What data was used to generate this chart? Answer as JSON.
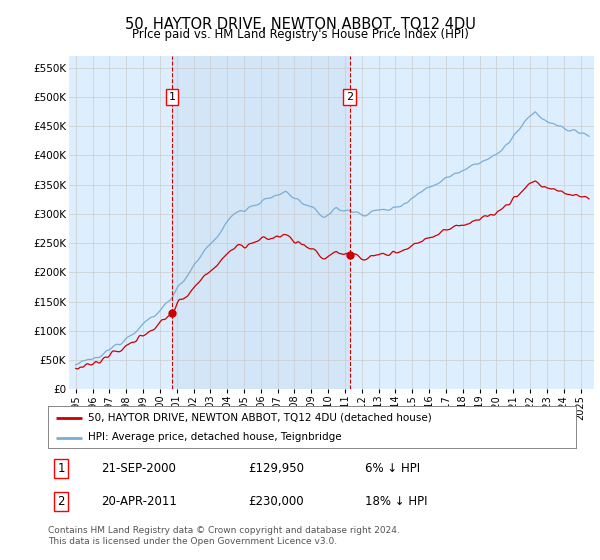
{
  "title": "50, HAYTOR DRIVE, NEWTON ABBOT, TQ12 4DU",
  "subtitle": "Price paid vs. HM Land Registry's House Price Index (HPI)",
  "sale1_date": "21-SEP-2000",
  "sale1_price": 129950,
  "sale1_note": "6% ↓ HPI",
  "sale2_date": "20-APR-2011",
  "sale2_price": 230000,
  "sale2_note": "18% ↓ HPI",
  "legend_red": "50, HAYTOR DRIVE, NEWTON ABBOT, TQ12 4DU (detached house)",
  "legend_blue": "HPI: Average price, detached house, Teignbridge",
  "footer": "Contains HM Land Registry data © Crown copyright and database right 2024.\nThis data is licensed under the Open Government Licence v3.0.",
  "red_color": "#cc0000",
  "blue_color": "#7aaed4",
  "vline_color": "#cc0000",
  "bg_color": "#ddeeff",
  "highlight_color": "#c8dff0",
  "grid_color": "#cccccc",
  "ylim": [
    0,
    570000
  ],
  "yticks": [
    0,
    50000,
    100000,
    150000,
    200000,
    250000,
    300000,
    350000,
    400000,
    450000,
    500000,
    550000
  ],
  "sale1_year": 2000.72,
  "sale2_year": 2011.28
}
